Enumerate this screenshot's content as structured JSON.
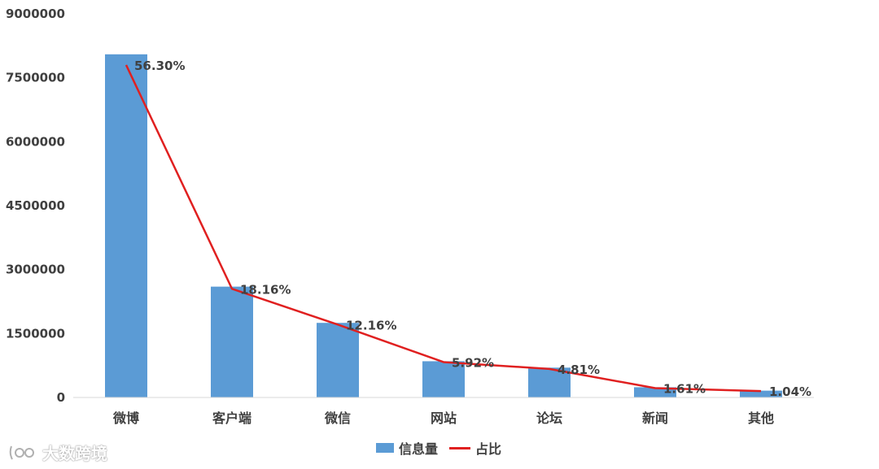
{
  "chart_data": {
    "type": "bar",
    "categories": [
      "微博",
      "客户端",
      "微信",
      "网站",
      "论坛",
      "新闻",
      "其他"
    ],
    "series": [
      {
        "name": "信息量",
        "type": "bar",
        "color": "#5B9BD5",
        "values": [
          8050000,
          2600000,
          1750000,
          850000,
          700000,
          240000,
          160000
        ]
      },
      {
        "name": "占比",
        "type": "line",
        "color": "#E02020",
        "values": [
          7800000,
          2550000,
          1710000,
          830000,
          670000,
          220000,
          150000
        ],
        "labels": [
          "56.30%",
          "18.16%",
          "12.16%",
          "5.92%",
          "4.81%",
          "1.61%",
          "1.04%"
        ]
      }
    ],
    "ylim": [
      0,
      9000000
    ],
    "yticks": [
      "0",
      "1500000",
      "3000000",
      "4500000",
      "6000000",
      "7500000",
      "9000000"
    ],
    "ytick_values": [
      0,
      1500000,
      3000000,
      4500000,
      6000000,
      7500000,
      9000000
    ],
    "grid": false,
    "legend_position": "bottom",
    "title": "",
    "xlabel": "",
    "ylabel": ""
  },
  "watermark": {
    "text": "大数跨境"
  }
}
